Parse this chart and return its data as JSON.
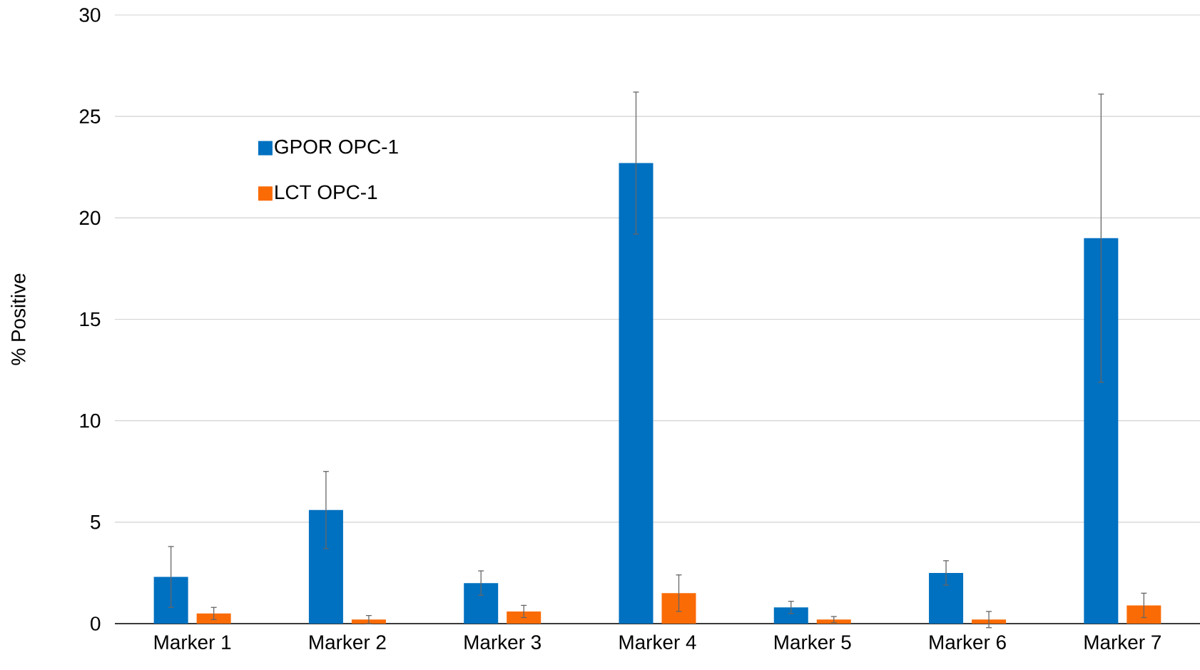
{
  "chart_data": {
    "type": "bar",
    "ylabel": "% Positive",
    "categories": [
      "Marker 1",
      "Marker 2",
      "Marker 3",
      "Marker 4",
      "Marker 5",
      "Marker 6",
      "Marker 7"
    ],
    "ylim": [
      0,
      30
    ],
    "yticks": [
      0,
      5,
      10,
      15,
      20,
      25,
      30
    ],
    "grid": "y",
    "legend": "top left",
    "series": [
      {
        "name": "GPOR OPC-1",
        "color": "#0070c0",
        "values": [
          2.3,
          5.6,
          2.0,
          22.7,
          0.8,
          2.5,
          19.0
        ],
        "errors": [
          1.5,
          1.9,
          0.6,
          3.5,
          0.3,
          0.6,
          7.1
        ]
      },
      {
        "name": "LCT OPC-1",
        "color": "#fa6b06",
        "values": [
          0.5,
          0.2,
          0.6,
          1.5,
          0.2,
          0.2,
          0.9
        ],
        "errors": [
          0.3,
          0.2,
          0.3,
          0.9,
          0.15,
          0.4,
          0.6
        ]
      }
    ]
  }
}
